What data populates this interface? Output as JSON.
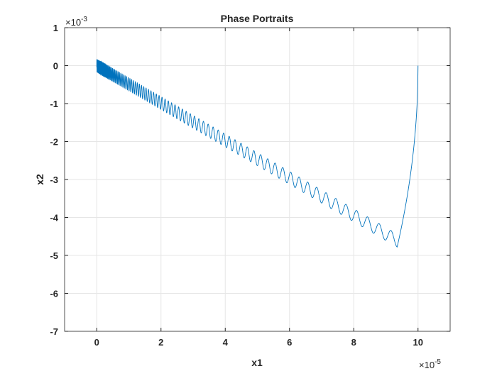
{
  "chart_data": {
    "type": "line",
    "title": "Phase Portraits",
    "xlabel": "x1",
    "ylabel": "x2",
    "x_exponent": "-5",
    "y_exponent": "-3",
    "exponent_base": "×10",
    "xlim": [
      -1,
      11
    ],
    "ylim": [
      -7,
      1
    ],
    "xticks": [
      0,
      2,
      4,
      6,
      8,
      10
    ],
    "yticks": [
      1,
      0,
      -1,
      -2,
      -3,
      -4,
      -5,
      -6,
      -7
    ],
    "grid": true,
    "series": [
      {
        "color": "#0072BD",
        "start_point": [
          10,
          0
        ],
        "min_point": [
          9.35,
          -4.78
        ],
        "end_point": [
          0,
          0
        ],
        "center_slope": -0.5,
        "oscillation_amplitude": 0.17
      }
    ]
  }
}
